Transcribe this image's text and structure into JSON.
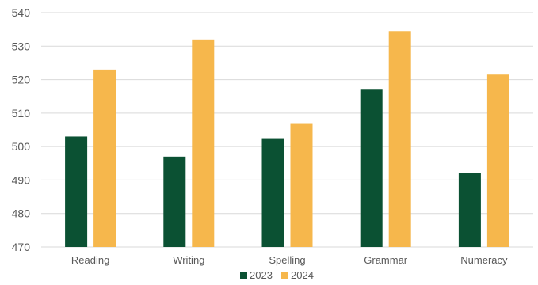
{
  "chart_data": {
    "type": "bar",
    "title": "",
    "xlabel": "",
    "ylabel": "",
    "ylim": [
      470,
      540
    ],
    "yticks": [
      470,
      480,
      490,
      500,
      510,
      520,
      530,
      540
    ],
    "grid": true,
    "legend_position": "bottom",
    "categories": [
      "Reading",
      "Writing",
      "Spelling",
      "Grammar",
      "Numeracy"
    ],
    "series": [
      {
        "name": "2023",
        "color": "#0b5133",
        "values": [
          503,
          497,
          502.5,
          517,
          492
        ]
      },
      {
        "name": "2024",
        "color": "#f6b74c",
        "values": [
          523,
          532,
          507,
          534.5,
          521.5
        ]
      }
    ]
  }
}
